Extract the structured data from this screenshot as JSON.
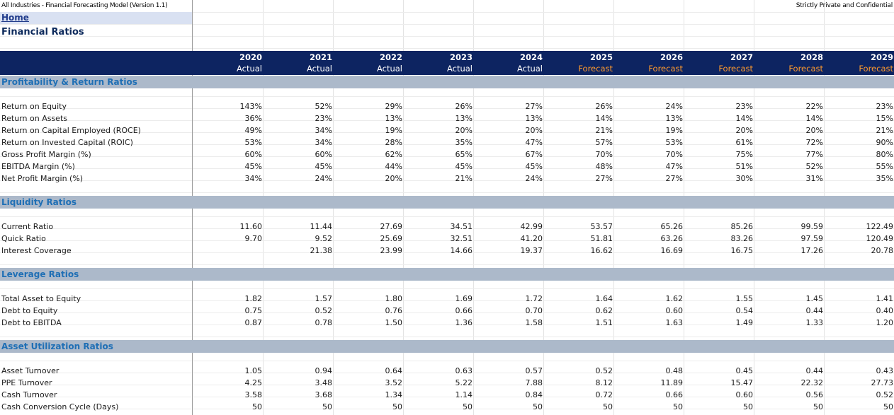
{
  "header": {
    "model_title": "All Industries - Financial Forecasting Model (Version 1.1)",
    "confidentiality": "Strictly Private and Confidential",
    "home_link": "Home",
    "page_title": "Financial Ratios"
  },
  "columns": [
    {
      "year": "2020",
      "status": "Actual"
    },
    {
      "year": "2021",
      "status": "Actual"
    },
    {
      "year": "2022",
      "status": "Actual"
    },
    {
      "year": "2023",
      "status": "Actual"
    },
    {
      "year": "2024",
      "status": "Actual"
    },
    {
      "year": "2025",
      "status": "Forecast"
    },
    {
      "year": "2026",
      "status": "Forecast"
    },
    {
      "year": "2027",
      "status": "Forecast"
    },
    {
      "year": "2028",
      "status": "Forecast"
    },
    {
      "year": "2029",
      "status": "Forecast"
    }
  ],
  "colors": {
    "header_band": "#0d2461",
    "forecast_label": "#ff9a2e",
    "section_band": "#acb9ca",
    "section_title": "#1f6fb5",
    "home_highlight": "#d9e1f2"
  },
  "sections": [
    {
      "title": "Profitability & Return Ratios",
      "rows": [
        {
          "label": "Return on Equity",
          "values": [
            "143%",
            "52%",
            "29%",
            "26%",
            "27%",
            "26%",
            "24%",
            "23%",
            "22%",
            "23%"
          ]
        },
        {
          "label": "Return on Assets",
          "values": [
            "36%",
            "23%",
            "13%",
            "13%",
            "13%",
            "14%",
            "13%",
            "14%",
            "14%",
            "15%"
          ]
        },
        {
          "label": "Return on Capital Employed (ROCE)",
          "values": [
            "49%",
            "34%",
            "19%",
            "20%",
            "20%",
            "21%",
            "19%",
            "20%",
            "20%",
            "21%"
          ]
        },
        {
          "label": "Return on Invested Capital (ROIC)",
          "values": [
            "53%",
            "34%",
            "28%",
            "35%",
            "47%",
            "57%",
            "53%",
            "61%",
            "72%",
            "90%"
          ]
        },
        {
          "label": "Gross Profit Margin (%)",
          "values": [
            "60%",
            "60%",
            "62%",
            "65%",
            "67%",
            "70%",
            "70%",
            "75%",
            "77%",
            "80%"
          ]
        },
        {
          "label": "EBITDA Margin (%)",
          "values": [
            "45%",
            "45%",
            "44%",
            "45%",
            "45%",
            "48%",
            "47%",
            "51%",
            "52%",
            "55%"
          ]
        },
        {
          "label": "Net Profit Margin (%)",
          "values": [
            "34%",
            "24%",
            "20%",
            "21%",
            "24%",
            "27%",
            "27%",
            "30%",
            "31%",
            "35%"
          ]
        }
      ]
    },
    {
      "title": "Liquidity Ratios",
      "rows": [
        {
          "label": "Current Ratio",
          "values": [
            "11.60",
            "11.44",
            "27.69",
            "34.51",
            "42.99",
            "53.57",
            "65.26",
            "85.26",
            "99.59",
            "122.49"
          ]
        },
        {
          "label": "Quick Ratio",
          "values": [
            "9.70",
            "9.52",
            "25.69",
            "32.51",
            "41.20",
            "51.81",
            "63.26",
            "83.26",
            "97.59",
            "120.49"
          ]
        },
        {
          "label": "Interest Coverage",
          "values": [
            "",
            "21.38",
            "23.99",
            "14.66",
            "19.37",
            "16.62",
            "16.69",
            "16.75",
            "17.26",
            "20.78"
          ]
        }
      ]
    },
    {
      "title": "Leverage Ratios",
      "rows": [
        {
          "label": "Total Asset to Equity",
          "values": [
            "1.82",
            "1.57",
            "1.80",
            "1.69",
            "1.72",
            "1.64",
            "1.62",
            "1.55",
            "1.45",
            "1.41"
          ]
        },
        {
          "label": "Debt to Equity",
          "values": [
            "0.75",
            "0.52",
            "0.76",
            "0.66",
            "0.70",
            "0.62",
            "0.60",
            "0.54",
            "0.44",
            "0.40"
          ]
        },
        {
          "label": "Debt to EBITDA",
          "values": [
            "0.87",
            "0.78",
            "1.50",
            "1.36",
            "1.58",
            "1.51",
            "1.63",
            "1.49",
            "1.33",
            "1.20"
          ]
        }
      ]
    },
    {
      "title": "Asset Utilization Ratios",
      "rows": [
        {
          "label": "Asset Turnover",
          "values": [
            "1.05",
            "0.94",
            "0.64",
            "0.63",
            "0.57",
            "0.52",
            "0.48",
            "0.45",
            "0.44",
            "0.43"
          ]
        },
        {
          "label": "PPE Turnover",
          "values": [
            "4.25",
            "3.48",
            "3.52",
            "5.22",
            "7.88",
            "8.12",
            "11.89",
            "15.47",
            "22.32",
            "27.73"
          ]
        },
        {
          "label": "Cash Turnover",
          "values": [
            "3.58",
            "3.68",
            "1.34",
            "1.14",
            "0.84",
            "0.72",
            "0.66",
            "0.60",
            "0.56",
            "0.52"
          ]
        },
        {
          "label": "Cash Conversion Cycle (Days)",
          "values": [
            "50",
            "50",
            "50",
            "50",
            "50",
            "50",
            "50",
            "50",
            "50",
            "50"
          ]
        }
      ]
    }
  ]
}
